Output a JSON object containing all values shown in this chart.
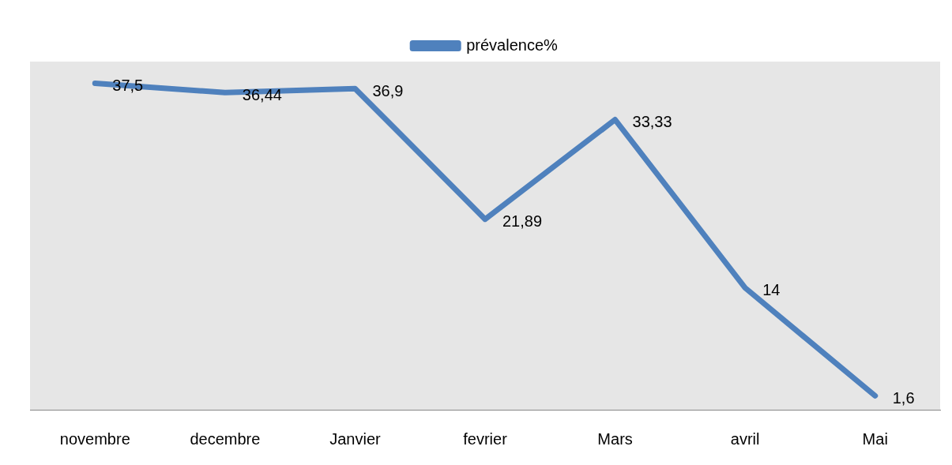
{
  "chart_data": {
    "type": "line",
    "categories": [
      "novembre",
      "decembre",
      "Janvier",
      "fevrier",
      "Mars",
      "avril",
      "Mai"
    ],
    "series": [
      {
        "name": "prévalence%",
        "color": "#4f81bd",
        "values": [
          37.5,
          36.44,
          36.9,
          21.89,
          33.33,
          14,
          1.6
        ],
        "value_labels": [
          "37,5",
          "36,44",
          "36,9",
          "21,89",
          "33,33",
          "14",
          "1,6"
        ]
      }
    ],
    "ylim": [
      0,
      40
    ],
    "tick_labels": "x",
    "legend": "top",
    "marker": "none",
    "grid": false
  }
}
